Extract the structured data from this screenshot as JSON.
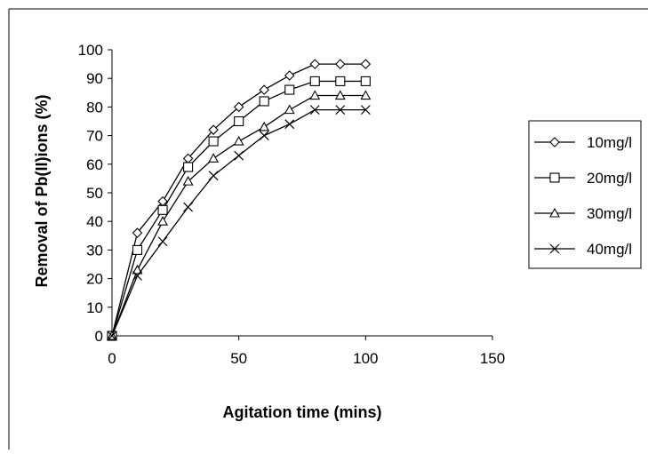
{
  "chart_data": {
    "type": "line",
    "title": "",
    "xlabel": "Agitation time (mins)",
    "ylabel": "Removal of Pb(II)ions (%)",
    "xlim": [
      0,
      150
    ],
    "ylim": [
      0,
      100
    ],
    "xticks": [
      0,
      50,
      100,
      150
    ],
    "yticks": [
      0,
      10,
      20,
      30,
      40,
      50,
      60,
      70,
      80,
      90,
      100
    ],
    "grid": false,
    "legend_position": "right",
    "x": [
      0,
      10,
      20,
      30,
      40,
      50,
      60,
      70,
      80,
      90,
      100
    ],
    "series": [
      {
        "name": "10mg/l",
        "marker": "diamond",
        "values": [
          0,
          36,
          47,
          62,
          72,
          80,
          86,
          91,
          95,
          95,
          95
        ]
      },
      {
        "name": "20mg/l",
        "marker": "square",
        "values": [
          0,
          30,
          44,
          59,
          68,
          75,
          82,
          86,
          89,
          89,
          89
        ]
      },
      {
        "name": "30mg/l",
        "marker": "triangle",
        "values": [
          0,
          23,
          40,
          54,
          62,
          68,
          73,
          79,
          84,
          84,
          84
        ]
      },
      {
        "name": "40mg/l",
        "marker": "x",
        "values": [
          0,
          21,
          33,
          45,
          56,
          63,
          70,
          74,
          79,
          79,
          79
        ]
      }
    ],
    "colors": {
      "line": "#000000",
      "marker_fill": "#ffffff"
    }
  }
}
